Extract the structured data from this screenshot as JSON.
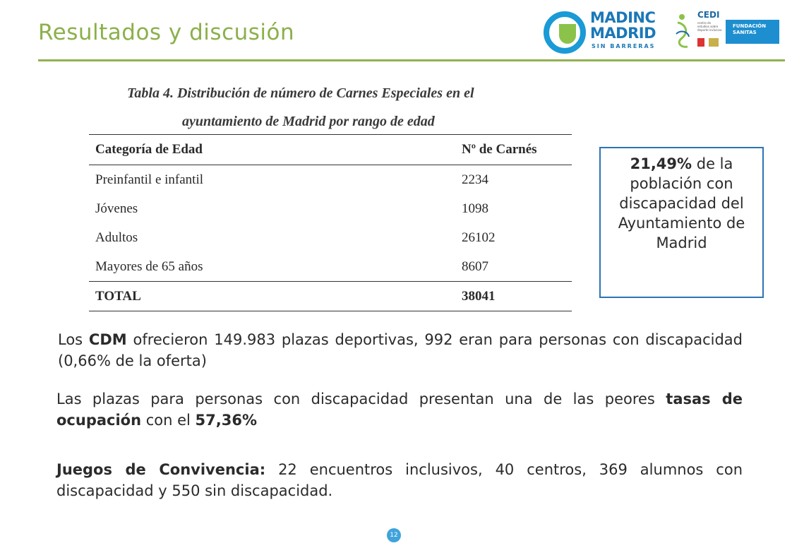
{
  "header": {
    "title": "Resultados y discusión"
  },
  "logos": {
    "madinc_line1": "MADINC",
    "madinc_line2": "MADRID",
    "madinc_line3": "SIN BARRERAS",
    "cedi_name": "CEDI",
    "cedi_sub": "centro de estudios sobre deporte inclusivo",
    "sanitas_line1": "FUNDACIÓN",
    "sanitas_line2": "SANITAS"
  },
  "table": {
    "caption_line1": "Tabla 4. Distribución de número de Carnes Especiales en el",
    "caption_line2": "ayuntamiento de Madrid por rango de edad",
    "headers": [
      "Categoría de Edad",
      "Nº de Carnés"
    ],
    "rows": [
      [
        "Preinfantil e infantil",
        "2234"
      ],
      [
        "Jóvenes",
        "1098"
      ],
      [
        "Adultos",
        "26102"
      ],
      [
        "Mayores de 65 años",
        "8607"
      ]
    ],
    "total": [
      "TOTAL",
      "38041"
    ]
  },
  "callout": {
    "highlight": "21,49%",
    "text1": " de la población con discapacidad del Ayuntamiento de Madrid"
  },
  "paragraphs": {
    "p1_a": "Los ",
    "p1_b": "CDM",
    "p1_c": " ofrecieron 149.983 plazas deportivas, 992 eran para personas con discapacidad (0,66% de la oferta)",
    "p2_a": "Las plazas para personas con discapacidad presentan una de las peores ",
    "p2_b": "tasas de ocupación",
    "p2_c": " con el ",
    "p2_d": "57,36%",
    "p3_a": "Juegos de Convivencia:",
    "p3_b": " 22 encuentros inclusivos, 40 centros, 369 alumnos con discapacidad y 550 sin discapacidad."
  },
  "footer": {
    "page_number": "12"
  },
  "colors": {
    "title_green": "#8bb04a",
    "callout_border": "#2c73b5",
    "page_badge": "#3fa3dc"
  }
}
